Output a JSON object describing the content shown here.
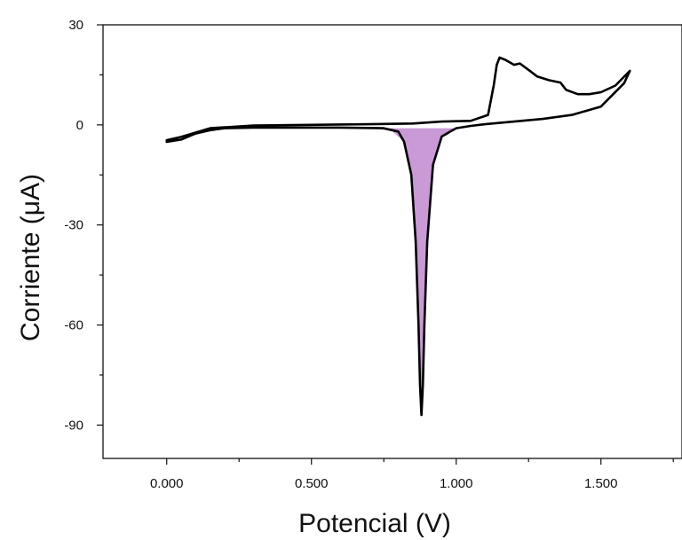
{
  "chart_data": {
    "type": "line",
    "title": "",
    "xlabel": "Potencial (V)",
    "ylabel": "Corriente (μA)",
    "xlim": [
      -0.22,
      1.78
    ],
    "ylim": [
      -100,
      30
    ],
    "xticks": [
      0.0,
      0.5,
      1.0,
      1.5
    ],
    "xtick_labels": [
      "0.000",
      "0.500",
      "1.000",
      "1.500"
    ],
    "yticks": [
      30,
      0,
      -30,
      -60,
      -90
    ],
    "ytick_labels": [
      "30",
      "0",
      "-30",
      "-60",
      "-90"
    ],
    "grid": false,
    "legend": "none",
    "series": [
      {
        "color": "#000000",
        "x": [
          0.0,
          0.05,
          0.15,
          0.3,
          0.5,
          0.7,
          0.85,
          0.95,
          1.05,
          1.11,
          1.13,
          1.14,
          1.15,
          1.17,
          1.2,
          1.22,
          1.25,
          1.28,
          1.32,
          1.36,
          1.38,
          1.42,
          1.46,
          1.5,
          1.55,
          1.6,
          1.58,
          1.5,
          1.4,
          1.3,
          1.2,
          1.1,
          1.05,
          1.0,
          0.95,
          0.92,
          0.9,
          0.89,
          0.885,
          0.88,
          0.875,
          0.87,
          0.86,
          0.845,
          0.82,
          0.8,
          0.75,
          0.6,
          0.45,
          0.3,
          0.2,
          0.15,
          0.1,
          0.05,
          0.0
        ],
        "y": [
          -4.6,
          -3.6,
          -1.0,
          -0.2,
          0.0,
          0.2,
          0.4,
          1.0,
          1.2,
          3.0,
          12.0,
          18.0,
          20.2,
          19.5,
          18.0,
          18.4,
          16.5,
          14.5,
          13.4,
          12.7,
          10.5,
          9.2,
          9.2,
          9.8,
          11.8,
          16.2,
          12.5,
          5.5,
          3.0,
          1.8,
          1.0,
          0.2,
          -0.3,
          -1.0,
          -3.5,
          -12.0,
          -35.0,
          -60.0,
          -78.0,
          -87.0,
          -78.0,
          -60.0,
          -35.0,
          -15.0,
          -5.0,
          -2.0,
          -1.0,
          -0.8,
          -0.8,
          -0.8,
          -1.0,
          -1.6,
          -2.6,
          -4.4,
          -5.1
        ]
      }
    ],
    "shaded_region": {
      "color": "#c99ad6",
      "description_label": "",
      "x": [
        0.72,
        0.78,
        0.82,
        0.845,
        0.86,
        0.87,
        0.875,
        0.88,
        0.885,
        0.89,
        0.9,
        0.92,
        0.95,
        1.0
      ],
      "y": [
        -1.0,
        -2.0,
        -5.0,
        -15.0,
        -35.0,
        -60.0,
        -78.0,
        -87.0,
        -78.0,
        -60.0,
        -35.0,
        -12.0,
        -3.5,
        -1.0
      ]
    }
  }
}
